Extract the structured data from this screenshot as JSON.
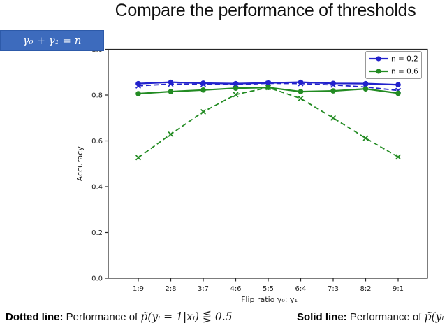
{
  "slide": {
    "title": "Compare the performance of thresholds",
    "badge": "γ₀ + γ₁ = n",
    "captions": {
      "dotted_label": "Dotted line:",
      "dotted_text": " Performance of ",
      "dotted_math": "p̃(yᵢ = 1|xᵢ) ⋚ 0.5",
      "solid_label": "Solid line:",
      "solid_text": " Performance of ",
      "solid_math": "p̃(yᵢ"
    }
  },
  "chart_data": {
    "type": "line",
    "title": "",
    "xlabel": "Flip ratio γ₀: γ₁",
    "ylabel": "Accuracy",
    "categories": [
      "1:9",
      "2:8",
      "3:7",
      "4:6",
      "5:5",
      "6:4",
      "7:3",
      "8:2",
      "9:1"
    ],
    "ylim": [
      0.0,
      1.0
    ],
    "yticks": [
      0.0,
      0.2,
      0.4,
      0.6,
      0.8,
      1.0
    ],
    "yticklabels": [
      "0.0",
      "0.2",
      "0.4",
      "0.6",
      "0.8",
      "1.0"
    ],
    "grid": false,
    "legend": {
      "position": "upper right",
      "entries": [
        {
          "label": "n = 0.2",
          "color": "#2222cc"
        },
        {
          "label": "n = 0.6",
          "color": "#228b22"
        }
      ]
    },
    "colors": {
      "blue": "#2222cc",
      "green": "#228b22",
      "axis": "#262626",
      "tick_text": "#222222",
      "legend_border": "#999999"
    },
    "series": [
      {
        "name": "n = 0.2 solid",
        "color": "#2222cc",
        "style": "solid",
        "marker": "circle",
        "values": [
          0.85,
          0.856,
          0.852,
          0.85,
          0.853,
          0.856,
          0.851,
          0.85,
          0.845
        ]
      },
      {
        "name": "n = 0.2 dotted",
        "color": "#2222cc",
        "style": "dashed",
        "marker": "x",
        "values": [
          0.84,
          0.848,
          0.847,
          0.846,
          0.851,
          0.85,
          0.844,
          0.835,
          0.82
        ]
      },
      {
        "name": "n = 0.6 solid",
        "color": "#228b22",
        "style": "solid",
        "marker": "circle",
        "values": [
          0.806,
          0.815,
          0.822,
          0.83,
          0.833,
          0.815,
          0.818,
          0.827,
          0.808
        ]
      },
      {
        "name": "n = 0.6 dotted",
        "color": "#228b22",
        "style": "dashed",
        "marker": "x",
        "values": [
          0.527,
          0.629,
          0.727,
          0.802,
          0.833,
          0.785,
          0.7,
          0.612,
          0.53
        ]
      }
    ]
  }
}
